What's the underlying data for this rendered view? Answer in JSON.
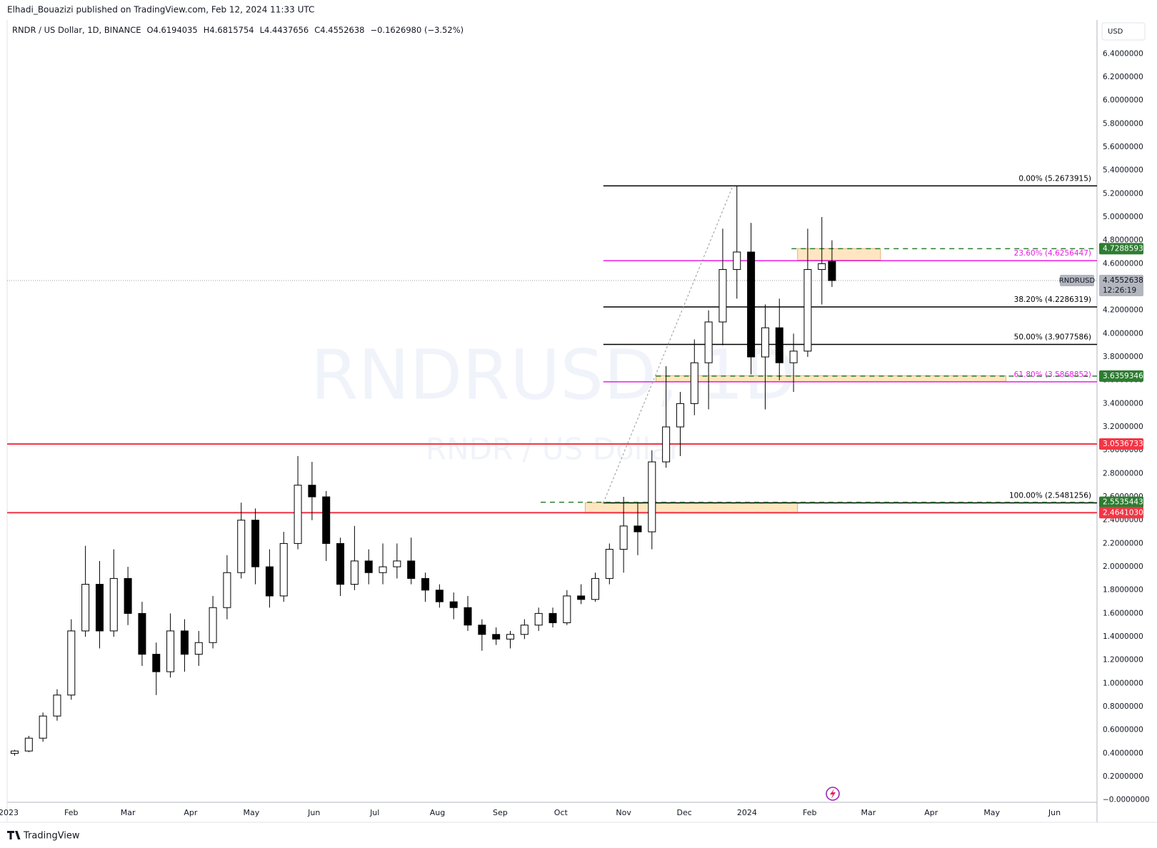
{
  "chart_data": {
    "type": "candlestick",
    "header": "Elhadi_Bouazizi published on TradingView.com, Feb 12, 2024 11:33 UTC",
    "symbol": "RNDR / US Dollar, 1D, BINANCE",
    "legend": [
      {
        "label": "O",
        "value": 4.6194035
      },
      {
        "label": "H",
        "value": 4.6815754
      },
      {
        "label": "L",
        "value": 4.4437656
      },
      {
        "label": "C",
        "value": 4.4552638
      }
    ],
    "change": "−0.1626980 (−3.52%)",
    "currency": "USD",
    "watermark": "RNDRUSD, 1D",
    "watermark_subtitle": "RNDR / US Dollar",
    "brand": "TradingView",
    "x": [
      3,
      10,
      17,
      24,
      31,
      38,
      45,
      52,
      59,
      66,
      73,
      80,
      87,
      94,
      101,
      108,
      115,
      122,
      129,
      136,
      143,
      150,
      157,
      164,
      171,
      178,
      185,
      192,
      199,
      206,
      213,
      220,
      227,
      234,
      241,
      248,
      255,
      262,
      269,
      276,
      283,
      290,
      297,
      304,
      311,
      318,
      325,
      332,
      339,
      346,
      353,
      360,
      367,
      374,
      381,
      388,
      395,
      402,
      407
    ],
    "open": [
      0.4,
      0.42,
      0.53,
      0.72,
      0.9,
      1.45,
      1.85,
      1.45,
      1.9,
      1.6,
      1.25,
      1.1,
      1.45,
      1.25,
      1.35,
      1.65,
      1.95,
      2.4,
      2.0,
      1.75,
      2.2,
      2.7,
      2.6,
      2.2,
      1.85,
      2.05,
      1.95,
      2.0,
      2.05,
      1.9,
      1.8,
      1.7,
      1.65,
      1.5,
      1.42,
      1.38,
      1.42,
      1.5,
      1.6,
      1.52,
      1.75,
      1.72,
      1.9,
      2.15,
      2.35,
      2.3,
      2.9,
      3.2,
      3.4,
      3.75,
      4.1,
      4.55,
      4.7,
      3.8,
      4.05,
      3.75,
      3.85,
      4.55,
      4.6194035
    ],
    "high": [
      0.43,
      0.55,
      0.75,
      0.95,
      1.55,
      2.18,
      2.05,
      2.15,
      2.0,
      1.7,
      1.35,
      1.6,
      1.55,
      1.45,
      1.75,
      2.1,
      2.55,
      2.5,
      2.15,
      2.3,
      2.95,
      2.9,
      2.65,
      2.25,
      2.35,
      2.15,
      2.2,
      2.2,
      2.25,
      1.95,
      1.85,
      1.78,
      1.75,
      1.55,
      1.48,
      1.45,
      1.55,
      1.65,
      1.65,
      1.8,
      1.85,
      1.95,
      2.2,
      2.6,
      2.55,
      3.0,
      3.72,
      3.5,
      3.95,
      4.2,
      4.9,
      5.2673915,
      4.95,
      4.25,
      4.3,
      4.0,
      4.9,
      5.0,
      4.8
    ],
    "low": [
      0.38,
      0.41,
      0.5,
      0.68,
      0.86,
      1.4,
      1.3,
      1.4,
      1.5,
      1.15,
      0.9,
      1.05,
      1.1,
      1.15,
      1.3,
      1.55,
      1.9,
      1.85,
      1.65,
      1.7,
      2.15,
      2.4,
      2.05,
      1.75,
      1.8,
      1.85,
      1.85,
      1.9,
      1.85,
      1.7,
      1.65,
      1.55,
      1.45,
      1.28,
      1.33,
      1.3,
      1.38,
      1.45,
      1.48,
      1.5,
      1.68,
      1.7,
      1.85,
      1.95,
      2.1,
      2.15,
      2.85,
      2.95,
      3.3,
      3.35,
      3.9,
      4.3,
      3.65,
      3.35,
      3.6,
      3.5,
      3.8,
      4.25,
      4.4
    ],
    "close": [
      0.42,
      0.53,
      0.72,
      0.9,
      1.45,
      1.85,
      1.45,
      1.9,
      1.6,
      1.25,
      1.1,
      1.45,
      1.25,
      1.35,
      1.65,
      1.95,
      2.4,
      2.0,
      1.75,
      2.2,
      2.7,
      2.6,
      2.2,
      1.85,
      2.05,
      1.95,
      2.0,
      2.05,
      1.9,
      1.8,
      1.7,
      1.65,
      1.5,
      1.42,
      1.38,
      1.42,
      1.5,
      1.6,
      1.52,
      1.75,
      1.72,
      1.9,
      2.15,
      2.35,
      2.3,
      2.9,
      3.2,
      3.4,
      3.75,
      4.1,
      4.55,
      4.7,
      3.8,
      4.05,
      3.75,
      3.85,
      4.55,
      4.6,
      4.4552638
    ],
    "up_color": "#ffffff",
    "down_color": "#000000",
    "xlim": [
      -0.7,
      538
    ],
    "xticks": [
      {
        "value": 0,
        "label": "2023"
      },
      {
        "value": 31,
        "label": "Feb"
      },
      {
        "value": 59,
        "label": "Mar"
      },
      {
        "value": 90,
        "label": "Apr"
      },
      {
        "value": 120,
        "label": "May"
      },
      {
        "value": 151,
        "label": "Jun"
      },
      {
        "value": 181,
        "label": "Jul"
      },
      {
        "value": 212,
        "label": "Aug"
      },
      {
        "value": 243,
        "label": "Sep"
      },
      {
        "value": 273,
        "label": "Oct"
      },
      {
        "value": 304,
        "label": "Nov"
      },
      {
        "value": 334,
        "label": "Dec"
      },
      {
        "value": 365,
        "label": "2024"
      },
      {
        "value": 396,
        "label": "Feb"
      },
      {
        "value": 425,
        "label": "Mar"
      },
      {
        "value": 456,
        "label": "Apr"
      },
      {
        "value": 486,
        "label": "May"
      },
      {
        "value": 517,
        "label": "Jun"
      }
    ],
    "ylim": [
      -0.02,
      6.69
    ],
    "yticks": [
      {
        "value": 0,
        "label": "−0.0000000"
      },
      {
        "value": 0.2,
        "label": "0.2000000"
      },
      {
        "value": 0.4,
        "label": "0.4000000"
      },
      {
        "value": 0.6,
        "label": "0.6000000"
      },
      {
        "value": 0.8,
        "label": "0.8000000"
      },
      {
        "value": 1,
        "label": "1.0000000"
      },
      {
        "value": 1.2,
        "label": "1.2000000"
      },
      {
        "value": 1.4,
        "label": "1.4000000"
      },
      {
        "value": 1.6,
        "label": "1.6000000"
      },
      {
        "value": 1.8,
        "label": "1.8000000"
      },
      {
        "value": 2,
        "label": "2.0000000"
      },
      {
        "value": 2.2,
        "label": "2.2000000"
      },
      {
        "value": 2.4,
        "label": "2.4000000"
      },
      {
        "value": 2.6,
        "label": "2.6000000"
      },
      {
        "value": 2.8,
        "label": "2.8000000"
      },
      {
        "value": 3,
        "label": "3.0000000"
      },
      {
        "value": 3.2,
        "label": "3.2000000"
      },
      {
        "value": 3.4,
        "label": "3.4000000"
      },
      {
        "value": 3.6,
        "label": "3.6000000"
      },
      {
        "value": 3.8,
        "label": "3.8000000"
      },
      {
        "value": 4,
        "label": "4.0000000"
      },
      {
        "value": 4.2,
        "label": "4.2000000"
      },
      {
        "value": 4.4,
        "label": "4.4000000"
      },
      {
        "value": 4.6,
        "label": "4.6000000"
      },
      {
        "value": 4.8,
        "label": "4.8000000"
      },
      {
        "value": 5,
        "label": "5.0000000"
      },
      {
        "value": 5.2,
        "label": "5.2000000"
      },
      {
        "value": 5.4,
        "label": "5.4000000"
      },
      {
        "value": 5.6,
        "label": "5.6000000"
      },
      {
        "value": 5.8,
        "label": "5.8000000"
      },
      {
        "value": 6,
        "label": "6.0000000"
      },
      {
        "value": 6.2,
        "label": "6.2000000"
      },
      {
        "value": 6.4,
        "label": "6.4000000"
      }
    ],
    "zones": [
      {
        "x": [
          390,
          431
        ],
        "y": [
          4.63,
          4.73
        ]
      },
      {
        "x": [
          320,
          493
        ],
        "y": [
          3.59,
          3.64
        ]
      },
      {
        "x": [
          285,
          390
        ],
        "y": [
          2.46,
          2.55
        ]
      }
    ],
    "trend": {
      "x": [
        294,
        358
      ],
      "y": [
        2.5481256,
        5.2673915
      ]
    },
    "fib_start": 294,
    "fib_levels": [
      {
        "value": 5.2673915,
        "label": "0.00% (5.2673915)",
        "color": "#000000"
      },
      {
        "value": 4.6256447,
        "label": "23.60% (4.6256447)",
        "color": "#e91ee3"
      },
      {
        "value": 4.2286319,
        "label": "38.20% (4.2286319)",
        "color": "#000000"
      },
      {
        "value": 3.9077586,
        "label": "50.00% (3.9077586)",
        "color": "#000000"
      },
      {
        "value": 3.5868852,
        "label": "61.80% (3.5868852)",
        "color": "#e91ee3"
      },
      {
        "value": 2.5481256,
        "label": "100.00% (2.5481256)",
        "color": "#000000"
      }
    ],
    "price_lines": [
      {
        "value": 4.7288593,
        "label": "4.7288593",
        "color": "#2e7d32",
        "style": "dashed",
        "from": 387
      },
      {
        "value": 3.6359346,
        "label": "3.6359346",
        "color": "#2e7d32",
        "style": "dashed",
        "from": 320
      },
      {
        "value": 3.0536733,
        "label": "3.0536733",
        "color": "#f23645",
        "style": "solid"
      },
      {
        "value": 2.5535443,
        "label": "2.5535443",
        "color": "#2e7d32",
        "style": "dashed",
        "from": 263
      },
      {
        "value": 2.464103,
        "label": "2.4641030",
        "color": "#f23645",
        "style": "solid"
      }
    ],
    "last_price": {
      "symbol": "RNDRUSD",
      "value": 4.4552638,
      "label": "4.4552638",
      "countdown": "12:26:19"
    }
  }
}
